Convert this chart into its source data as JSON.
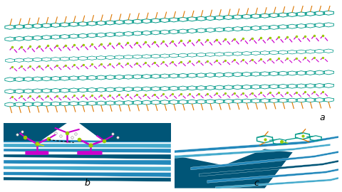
{
  "bg_color": "#e8e8e8",
  "white": "#ffffff",
  "teal": "#009988",
  "magenta": "#CC00CC",
  "yellow_green": "#99CC00",
  "orange": "#DD7700",
  "blue_dark": "#005577",
  "blue_mid": "#2288BB",
  "blue_light": "#44AACC",
  "black": "#000000",
  "label_a": "a",
  "label_b": "b",
  "label_c": "c",
  "label_fontsize": 9,
  "fig_width": 4.8,
  "fig_height": 2.7,
  "dpi": 100
}
